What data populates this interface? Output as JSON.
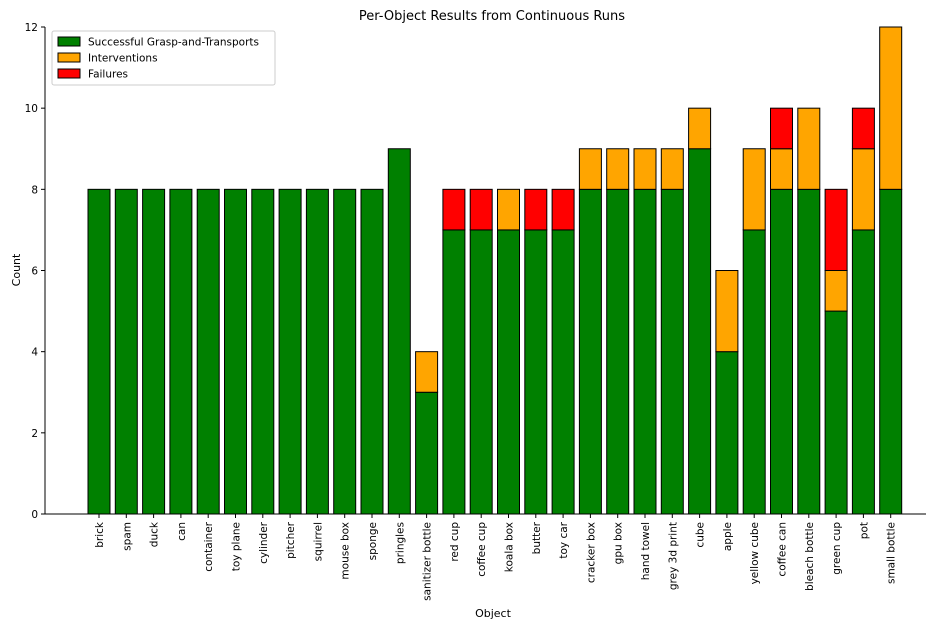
{
  "chart_data": {
    "type": "bar",
    "stacked": true,
    "title": "Per-Object Results from Continuous Runs",
    "xlabel": "Object",
    "ylabel": "Count",
    "ylim": [
      0,
      12
    ],
    "yticks": [
      0,
      2,
      4,
      6,
      8,
      10,
      12
    ],
    "grid": false,
    "legend_position": "top-left",
    "categories": [
      "brick",
      "spam",
      "duck",
      "can",
      "container",
      "toy plane",
      "cylinder",
      "pitcher",
      "squirrel",
      "mouse box",
      "sponge",
      "pringles",
      "sanitizer bottle",
      "red cup",
      "coffee cup",
      "koala box",
      "butter",
      "toy car",
      "cracker box",
      "gpu box",
      "hand towel",
      "grey 3d print",
      "cube",
      "apple",
      "yellow cube",
      "coffee can",
      "bleach bottle",
      "green cup",
      "pot",
      "small bottle"
    ],
    "series": [
      {
        "name": "Successful Grasp-and-Transports",
        "color": "#008000",
        "values": [
          8,
          8,
          8,
          8,
          8,
          8,
          8,
          8,
          8,
          8,
          8,
          9,
          3,
          7,
          7,
          7,
          7,
          7,
          8,
          8,
          8,
          8,
          9,
          4,
          7,
          8,
          8,
          5,
          7,
          8
        ]
      },
      {
        "name": "Interventions",
        "color": "#FFA500",
        "values": [
          0,
          0,
          0,
          0,
          0,
          0,
          0,
          0,
          0,
          0,
          0,
          0,
          1,
          0,
          0,
          1,
          0,
          0,
          1,
          1,
          1,
          1,
          1,
          2,
          2,
          1,
          2,
          1,
          2,
          4
        ]
      },
      {
        "name": "Failures",
        "color": "#FF0000",
        "values": [
          0,
          0,
          0,
          0,
          0,
          0,
          0,
          0,
          0,
          0,
          0,
          0,
          0,
          1,
          1,
          0,
          1,
          1,
          0,
          0,
          0,
          0,
          0,
          0,
          0,
          1,
          0,
          2,
          1,
          0
        ]
      }
    ]
  }
}
